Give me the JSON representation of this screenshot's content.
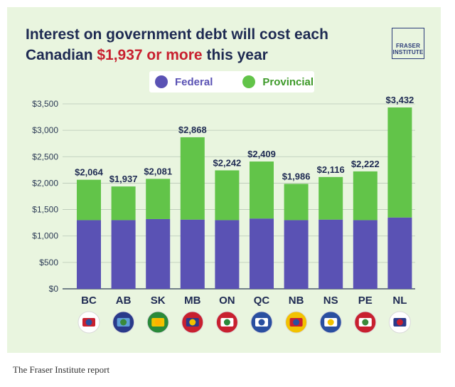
{
  "headline": {
    "line1": "Interest on government debt will cost each",
    "line2_prefix": "Canadian ",
    "line2_highlight": "$1,937 or more",
    "line2_suffix": " this year"
  },
  "logo": {
    "line1": "FRASER",
    "line2": "INSTITUTE"
  },
  "caption": "The Fraser Institute report",
  "colors": {
    "federal": "#5a52b4",
    "provincial": "#62c449",
    "title": "#1e2a52",
    "highlight": "#c8202f",
    "background": "#e9f5df"
  },
  "chart_data": {
    "type": "bar",
    "stacked": true,
    "title": "Interest on government debt will cost each Canadian $1,937 or more this year",
    "categories": [
      "BC",
      "AB",
      "SK",
      "MB",
      "ON",
      "QC",
      "NB",
      "NS",
      "PE",
      "NL"
    ],
    "series": [
      {
        "name": "Federal",
        "color": "#5a52b4",
        "values": [
          1300,
          1300,
          1320,
          1310,
          1300,
          1330,
          1300,
          1310,
          1300,
          1350
        ]
      },
      {
        "name": "Provincial",
        "color": "#62c449",
        "values": [
          764,
          637,
          761,
          1558,
          942,
          1079,
          686,
          806,
          922,
          2082
        ]
      }
    ],
    "totals": [
      2064,
      1937,
      2081,
      2868,
      2242,
      2409,
      1986,
      2116,
      2222,
      3432
    ],
    "total_labels": [
      "$2,064",
      "$1,937",
      "$2,081",
      "$2,868",
      "$2,242",
      "$2,409",
      "$1,986",
      "$2,116",
      "$2,222",
      "$3,432"
    ],
    "ylim": [
      0,
      3500
    ],
    "yticks": [
      0,
      500,
      1000,
      1500,
      2000,
      2500,
      3000,
      3500
    ],
    "ytick_labels": [
      "$0",
      "$500",
      "$1,000",
      "$1,500",
      "$2,000",
      "$2,500",
      "$3,000",
      "$3,500"
    ],
    "grid": true,
    "legend_position": "top-center",
    "flag_icons": [
      "bc-flag-icon",
      "ab-flag-icon",
      "sk-flag-icon",
      "mb-flag-icon",
      "on-flag-icon",
      "qc-flag-icon",
      "nb-flag-icon",
      "ns-flag-icon",
      "pe-flag-icon",
      "nl-flag-icon"
    ]
  }
}
